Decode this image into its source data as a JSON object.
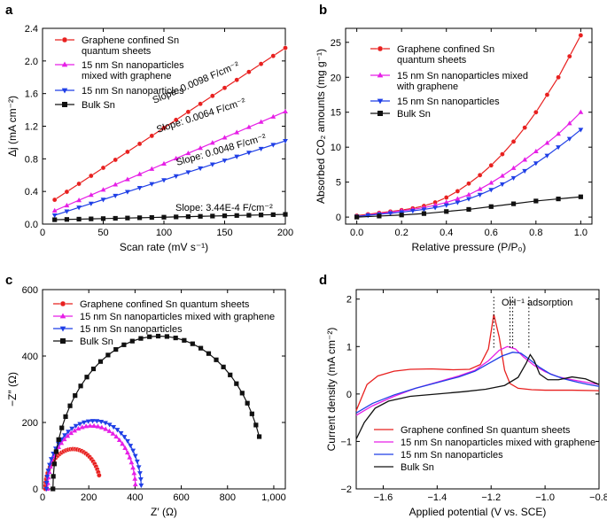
{
  "chart_data": [
    {
      "panel": "a",
      "type": "line",
      "xlabel": "Scan rate (mV s⁻¹)",
      "ylabel": "Δj (mA cm⁻²)",
      "xlim": [
        0,
        200
      ],
      "ylim": [
        0,
        2.4
      ],
      "xticks": [
        0,
        50,
        100,
        150,
        200
      ],
      "yticks": [
        0.0,
        0.4,
        0.8,
        1.2,
        1.6,
        2.0,
        2.4
      ],
      "ytick_labels": [
        "0.0",
        "0.4",
        "0.8",
        "1.2",
        "1.6",
        "2.0",
        "2.4"
      ],
      "x": [
        10,
        20,
        30,
        40,
        50,
        60,
        70,
        80,
        90,
        100,
        110,
        120,
        130,
        140,
        150,
        160,
        170,
        180,
        190,
        200
      ],
      "series": [
        {
          "name": "Graphene confined Sn quantum sheets",
          "legend": [
            "Graphene confined Sn",
            "quantum sheets"
          ],
          "color": "#e8201f",
          "marker": "circle",
          "intercept": 0.2,
          "slope": 0.0098
        },
        {
          "name": "15 nm Sn nanoparticles mixed with graphene",
          "legend": [
            "15 nm Sn nanoparticles",
            "mixed with graphene"
          ],
          "color": "#e61fe6",
          "marker": "triangle-up",
          "intercept": 0.1,
          "slope": 0.0064
        },
        {
          "name": "15 nm Sn nanoparticles",
          "legend": [
            "15 nm Sn nanoparticles"
          ],
          "color": "#1f3fe6",
          "marker": "triangle-down",
          "intercept": 0.06,
          "slope": 0.0048
        },
        {
          "name": "Bulk Sn",
          "legend": [
            "Bulk Sn"
          ],
          "color": "#111111",
          "marker": "square",
          "intercept": 0.05,
          "slope": 0.000344
        }
      ],
      "annotations": [
        "Slope: 0.0098 F/cm⁻²",
        "Slope: 0.0064 F/cm⁻²",
        "Slope: 0.0048 F/cm⁻²",
        "Slope: 3.44E-4 F/cm⁻²"
      ]
    },
    {
      "panel": "b",
      "type": "line",
      "xlabel": "Relative pressure (P/P₀)",
      "ylabel": "Absorbed CO₂ amounts (mg g⁻¹)",
      "xlim": [
        -0.05,
        1.05
      ],
      "ylim": [
        -1,
        27
      ],
      "xticks": [
        0.0,
        0.2,
        0.4,
        0.6,
        0.8,
        1.0
      ],
      "xtick_labels": [
        "0.0",
        "0.2",
        "0.4",
        "0.6",
        "0.8",
        "1.0"
      ],
      "yticks": [
        0,
        5,
        10,
        15,
        20,
        25
      ],
      "series": [
        {
          "name": "Graphene confined Sn quantum sheets",
          "legend": [
            "Graphene confined Sn",
            "quantum sheets"
          ],
          "color": "#e8201f",
          "marker": "circle",
          "points": [
            [
              0,
              0.2
            ],
            [
              0.05,
              0.4
            ],
            [
              0.1,
              0.6
            ],
            [
              0.15,
              0.8
            ],
            [
              0.2,
              1
            ],
            [
              0.25,
              1.25
            ],
            [
              0.3,
              1.6
            ],
            [
              0.35,
              2.1
            ],
            [
              0.4,
              2.8
            ],
            [
              0.45,
              3.7
            ],
            [
              0.5,
              4.8
            ],
            [
              0.55,
              6
            ],
            [
              0.6,
              7.4
            ],
            [
              0.65,
              9
            ],
            [
              0.7,
              10.8
            ],
            [
              0.75,
              12.8
            ],
            [
              0.8,
              15
            ],
            [
              0.85,
              17.5
            ],
            [
              0.9,
              20
            ],
            [
              0.95,
              23
            ],
            [
              1.0,
              26
            ]
          ]
        },
        {
          "name": "15 nm Sn nanoparticles mixed with graphene",
          "legend": [
            "15 nm Sn nanoparticles mixed",
            "with graphene"
          ],
          "color": "#e61fe6",
          "marker": "triangle-up",
          "points": [
            [
              0,
              0.1
            ],
            [
              0.05,
              0.3
            ],
            [
              0.1,
              0.5
            ],
            [
              0.15,
              0.7
            ],
            [
              0.2,
              0.9
            ],
            [
              0.25,
              1.1
            ],
            [
              0.3,
              1.35
            ],
            [
              0.35,
              1.7
            ],
            [
              0.4,
              2.1
            ],
            [
              0.45,
              2.6
            ],
            [
              0.5,
              3.2
            ],
            [
              0.55,
              4
            ],
            [
              0.6,
              4.9
            ],
            [
              0.65,
              5.9
            ],
            [
              0.7,
              7
            ],
            [
              0.75,
              8.2
            ],
            [
              0.8,
              9.4
            ],
            [
              0.85,
              10.6
            ],
            [
              0.9,
              11.9
            ],
            [
              0.95,
              13.4
            ],
            [
              1.0,
              15
            ]
          ]
        },
        {
          "name": "15 nm Sn nanoparticles",
          "legend": [
            "15 nm Sn nanoparticles"
          ],
          "color": "#1f3fe6",
          "marker": "triangle-down",
          "points": [
            [
              0,
              0.1
            ],
            [
              0.05,
              0.25
            ],
            [
              0.1,
              0.4
            ],
            [
              0.15,
              0.55
            ],
            [
              0.2,
              0.7
            ],
            [
              0.25,
              0.9
            ],
            [
              0.3,
              1.1
            ],
            [
              0.35,
              1.35
            ],
            [
              0.4,
              1.7
            ],
            [
              0.45,
              2.1
            ],
            [
              0.5,
              2.6
            ],
            [
              0.55,
              3.2
            ],
            [
              0.6,
              3.9
            ],
            [
              0.65,
              4.7
            ],
            [
              0.7,
              5.6
            ],
            [
              0.75,
              6.6
            ],
            [
              0.8,
              7.7
            ],
            [
              0.85,
              8.8
            ],
            [
              0.9,
              10
            ],
            [
              0.95,
              11.2
            ],
            [
              1.0,
              12.5
            ]
          ]
        },
        {
          "name": "Bulk Sn",
          "legend": [
            "Bulk Sn"
          ],
          "color": "#111111",
          "marker": "square",
          "points": [
            [
              0,
              0
            ],
            [
              0.1,
              0.15
            ],
            [
              0.2,
              0.3
            ],
            [
              0.3,
              0.5
            ],
            [
              0.4,
              0.8
            ],
            [
              0.5,
              1.1
            ],
            [
              0.6,
              1.5
            ],
            [
              0.7,
              1.9
            ],
            [
              0.8,
              2.3
            ],
            [
              0.9,
              2.6
            ],
            [
              1.0,
              2.9
            ]
          ]
        }
      ]
    },
    {
      "panel": "c",
      "type": "scatter",
      "xlabel": "Z′ (Ω)",
      "ylabel": "−Z″ (Ω)",
      "xlim": [
        0,
        1050
      ],
      "ylim": [
        0,
        600
      ],
      "xticks": [
        0,
        200,
        400,
        600,
        800,
        1000
      ],
      "xtick_labels": [
        "0",
        "200",
        "400",
        "600",
        "800",
        "1,000"
      ],
      "yticks": [
        0,
        200,
        400,
        600
      ],
      "series": [
        {
          "name": "Graphene confined Sn quantum sheets",
          "color": "#e8201f",
          "marker": "circle",
          "center": 132,
          "radius": 120,
          "end_deg": 160
        },
        {
          "name": "15 nm Sn nanoparticles mixed with graphene",
          "color": "#e61fe6",
          "marker": "triangle-up",
          "center": 212,
          "radius": 190,
          "end_deg": 176
        },
        {
          "name": "15 nm Sn nanoparticles",
          "color": "#1f3fe6",
          "marker": "triangle-down",
          "center": 222,
          "radius": 205,
          "end_deg": 177
        },
        {
          "name": "Bulk Sn",
          "color": "#111111",
          "marker": "square",
          "center": 505,
          "radius": 460,
          "end_deg": 160
        }
      ]
    },
    {
      "panel": "d",
      "type": "line",
      "xlabel": "Applied potential (V vs. SCE)",
      "ylabel": "Current density (mA cm⁻²)",
      "xlim": [
        -1.7,
        -0.8
      ],
      "ylim": [
        -2,
        2.2
      ],
      "xticks": [
        -1.6,
        -1.4,
        -1.2,
        -1.0,
        -0.8
      ],
      "xtick_labels": [
        "−1.6",
        "−1.4",
        "−1.2",
        "−1.0",
        "−0.8"
      ],
      "yticks": [
        -2,
        -1,
        0,
        1,
        2
      ],
      "ytick_labels": [
        "−2",
        "−1",
        "0",
        "1",
        "2"
      ],
      "annotation": "OH⁻¹ adsorption",
      "peak_markers": [
        -1.19,
        -1.13,
        -1.12,
        -1.06
      ],
      "series": [
        {
          "name": "Graphene confined Sn quantum sheets",
          "color": "#e8201f",
          "points": [
            [
              -1.7,
              -0.35
            ],
            [
              -1.66,
              0.2
            ],
            [
              -1.62,
              0.38
            ],
            [
              -1.56,
              0.48
            ],
            [
              -1.5,
              0.52
            ],
            [
              -1.42,
              0.53
            ],
            [
              -1.34,
              0.51
            ],
            [
              -1.28,
              0.52
            ],
            [
              -1.24,
              0.62
            ],
            [
              -1.21,
              0.95
            ],
            [
              -1.19,
              1.68
            ],
            [
              -1.17,
              1.2
            ],
            [
              -1.15,
              0.5
            ],
            [
              -1.13,
              0.22
            ],
            [
              -1.1,
              0.12
            ],
            [
              -1.05,
              0.09
            ],
            [
              -1.0,
              0.08
            ],
            [
              -0.9,
              0.08
            ],
            [
              -0.8,
              0.07
            ]
          ]
        },
        {
          "name": "15 nm Sn nanoparticles mixed with graphene",
          "color": "#e61fe6",
          "points": [
            [
              -1.7,
              -0.45
            ],
            [
              -1.64,
              -0.25
            ],
            [
              -1.56,
              -0.05
            ],
            [
              -1.48,
              0.12
            ],
            [
              -1.4,
              0.25
            ],
            [
              -1.32,
              0.38
            ],
            [
              -1.26,
              0.5
            ],
            [
              -1.21,
              0.7
            ],
            [
              -1.17,
              0.92
            ],
            [
              -1.14,
              1.0
            ],
            [
              -1.11,
              0.95
            ],
            [
              -1.08,
              0.78
            ],
            [
              -1.04,
              0.6
            ],
            [
              -1.0,
              0.47
            ],
            [
              -0.95,
              0.36
            ],
            [
              -0.9,
              0.3
            ],
            [
              -0.85,
              0.25
            ],
            [
              -0.8,
              0.2
            ]
          ]
        },
        {
          "name": "15 nm Sn nanoparticles",
          "color": "#1f3fe6",
          "points": [
            [
              -1.7,
              -0.4
            ],
            [
              -1.64,
              -0.2
            ],
            [
              -1.56,
              -0.02
            ],
            [
              -1.48,
              0.12
            ],
            [
              -1.4,
              0.24
            ],
            [
              -1.32,
              0.36
            ],
            [
              -1.26,
              0.48
            ],
            [
              -1.21,
              0.64
            ],
            [
              -1.16,
              0.8
            ],
            [
              -1.12,
              0.88
            ],
            [
              -1.09,
              0.86
            ],
            [
              -1.06,
              0.74
            ],
            [
              -1.02,
              0.56
            ],
            [
              -0.98,
              0.42
            ],
            [
              -0.93,
              0.32
            ],
            [
              -0.88,
              0.25
            ],
            [
              -0.84,
              0.2
            ],
            [
              -0.8,
              0.16
            ]
          ]
        },
        {
          "name": "Bulk Sn",
          "color": "#111111",
          "points": [
            [
              -1.7,
              -0.95
            ],
            [
              -1.67,
              -0.6
            ],
            [
              -1.63,
              -0.3
            ],
            [
              -1.58,
              -0.15
            ],
            [
              -1.5,
              -0.05
            ],
            [
              -1.4,
              0.0
            ],
            [
              -1.3,
              0.05
            ],
            [
              -1.22,
              0.1
            ],
            [
              -1.15,
              0.18
            ],
            [
              -1.1,
              0.35
            ],
            [
              -1.07,
              0.65
            ],
            [
              -1.055,
              0.83
            ],
            [
              -1.04,
              0.7
            ],
            [
              -1.02,
              0.42
            ],
            [
              -0.99,
              0.3
            ],
            [
              -0.95,
              0.3
            ],
            [
              -0.9,
              0.36
            ],
            [
              -0.85,
              0.32
            ],
            [
              -0.8,
              0.2
            ]
          ]
        }
      ]
    }
  ]
}
